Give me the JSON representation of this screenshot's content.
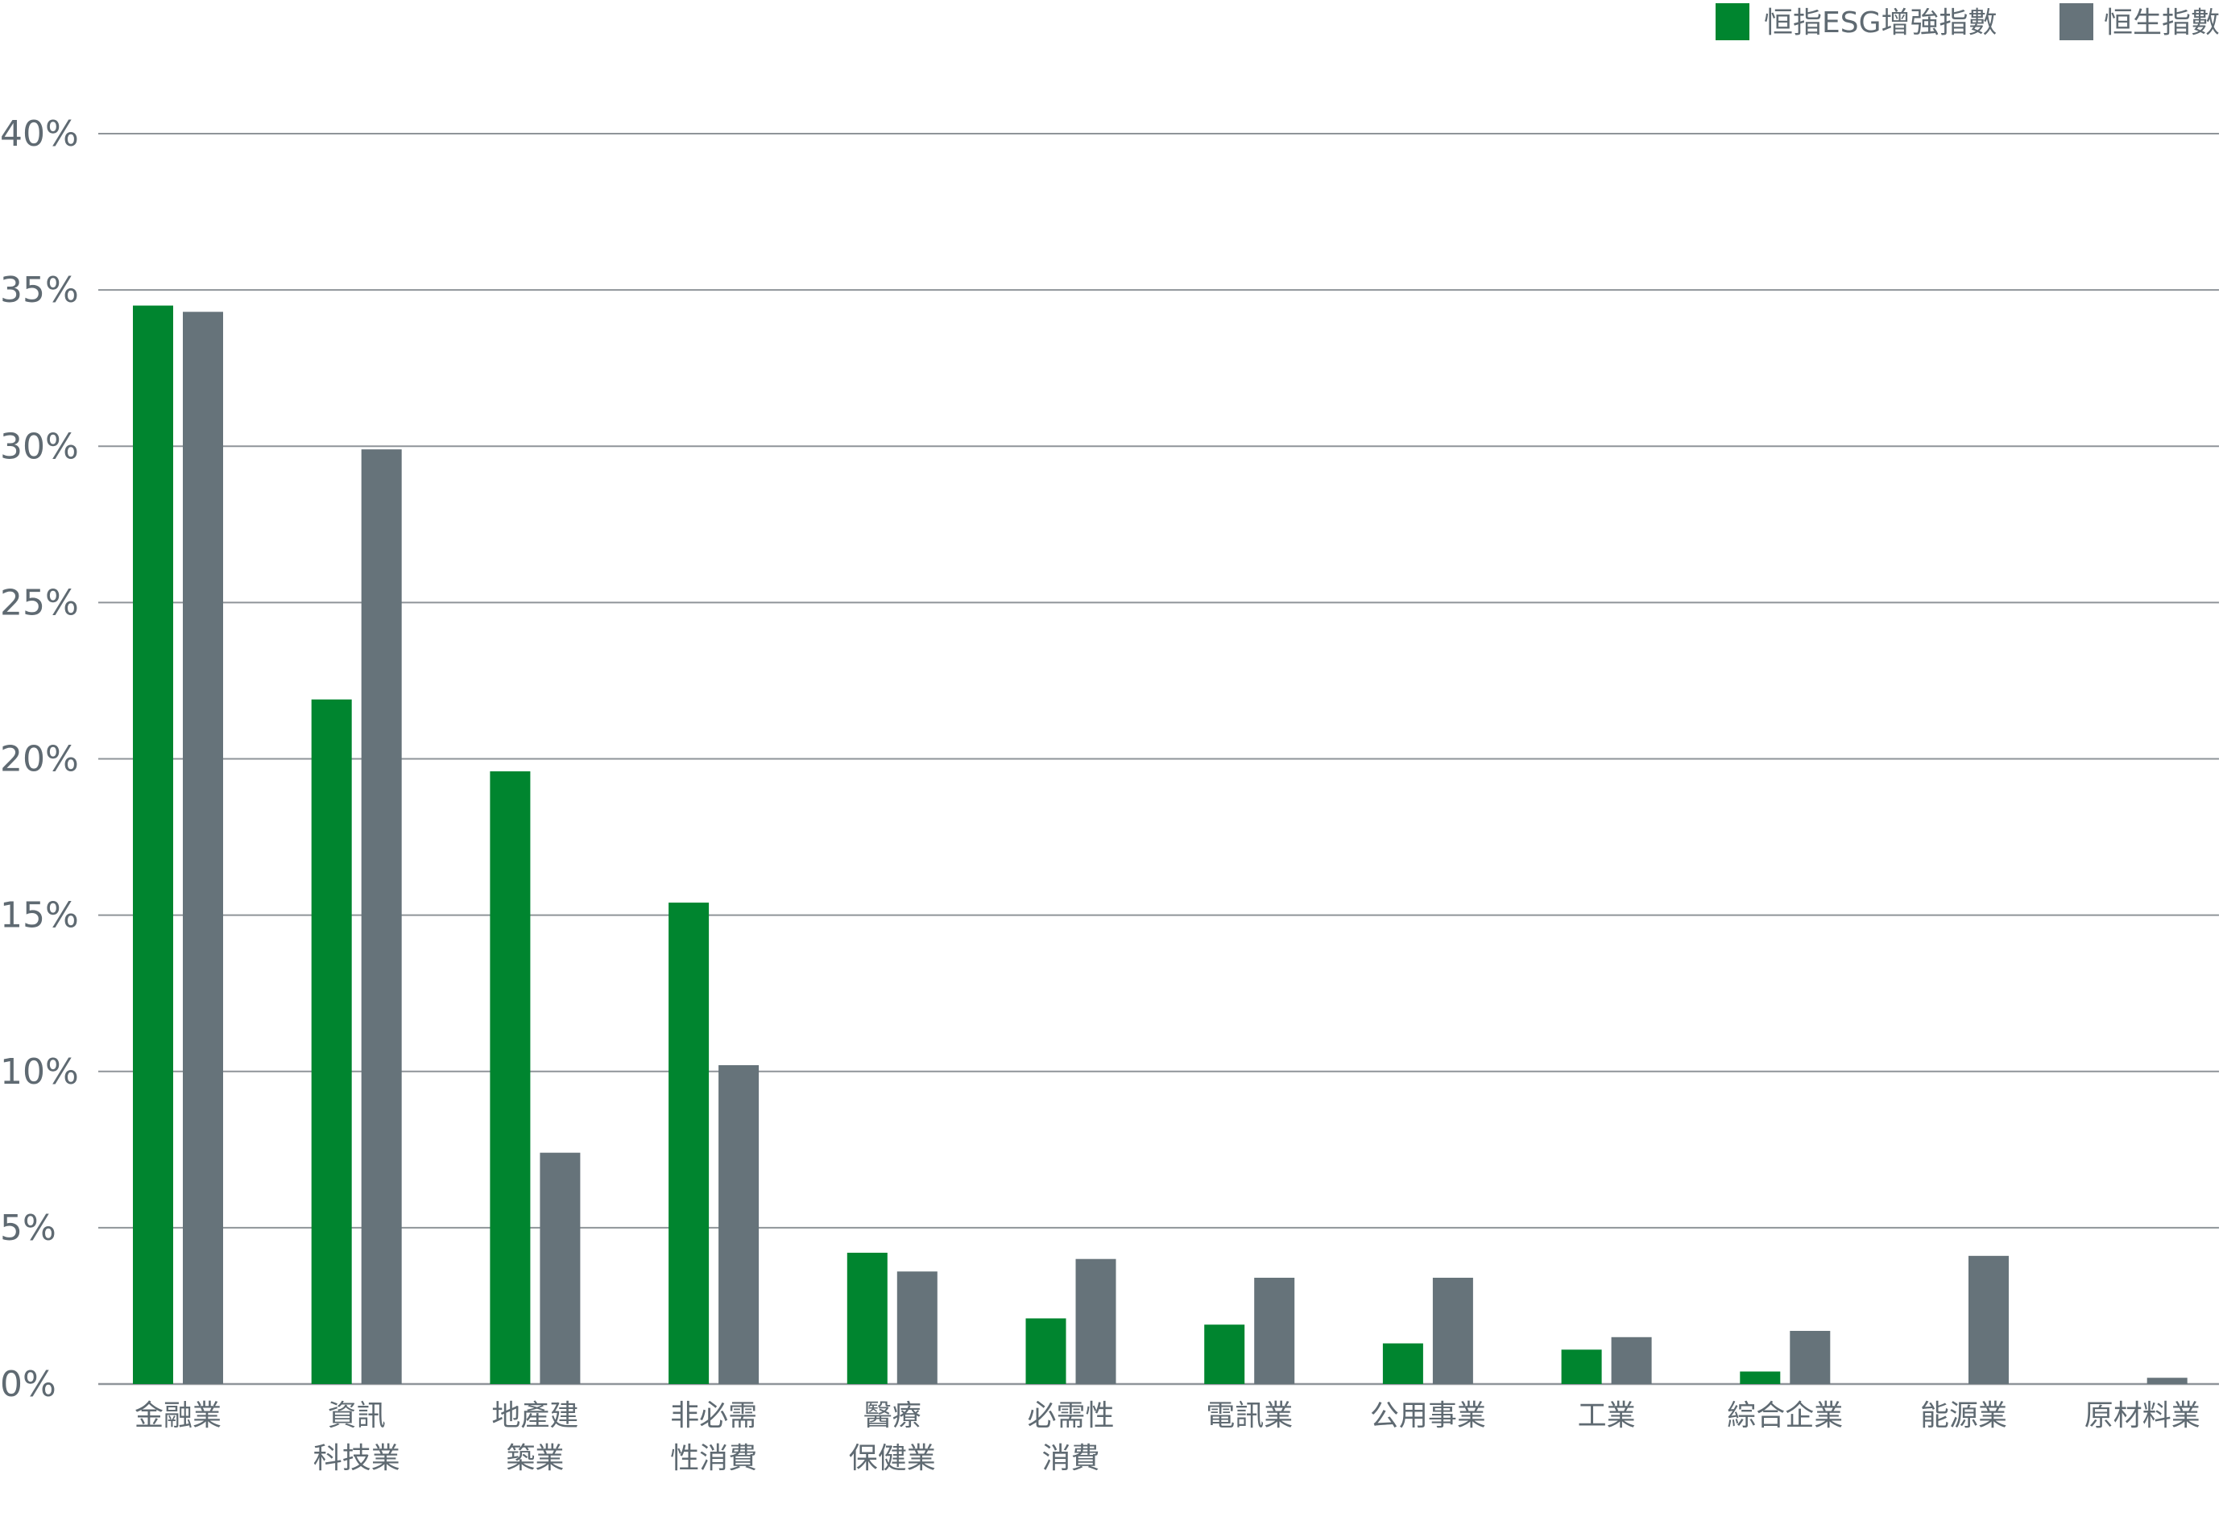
{
  "chart_data": {
    "type": "bar",
    "title": "",
    "xlabel": "",
    "ylabel": "",
    "ylim": [
      0,
      40
    ],
    "y_ticks": [
      {
        "value": 0,
        "label": "0%"
      },
      {
        "value": 5,
        "label": "5%"
      },
      {
        "value": 10,
        "label": "10%"
      },
      {
        "value": 15,
        "label": "15%"
      },
      {
        "value": 20,
        "label": "20%"
      },
      {
        "value": 25,
        "label": "25%"
      },
      {
        "value": 30,
        "label": "30%"
      },
      {
        "value": 35,
        "label": "35%"
      },
      {
        "value": 40,
        "label": "40%"
      }
    ],
    "grid": true,
    "legend_position": "top-right",
    "categories": [
      [
        "金融業"
      ],
      [
        "資訊",
        "科技業"
      ],
      [
        "地產建",
        "築業"
      ],
      [
        "非必需",
        "性消費"
      ],
      [
        "醫療",
        "保健業"
      ],
      [
        "必需性",
        "消費"
      ],
      [
        "電訊業"
      ],
      [
        "公用事業"
      ],
      [
        "工業"
      ],
      [
        "綜合企業"
      ],
      [
        "能源業"
      ],
      [
        "原材料業"
      ]
    ],
    "series": [
      {
        "name": "恒指ESG增強指數",
        "color": "#00852f",
        "values": [
          34.5,
          21.9,
          19.6,
          15.4,
          4.2,
          2.1,
          1.9,
          1.3,
          1.1,
          0.4,
          0.0,
          0.0
        ]
      },
      {
        "name": "恒生指數",
        "color": "#66737a",
        "values": [
          34.3,
          29.9,
          7.4,
          10.2,
          3.6,
          4.0,
          3.4,
          3.4,
          1.5,
          1.7,
          4.1,
          0.2
        ]
      }
    ]
  }
}
